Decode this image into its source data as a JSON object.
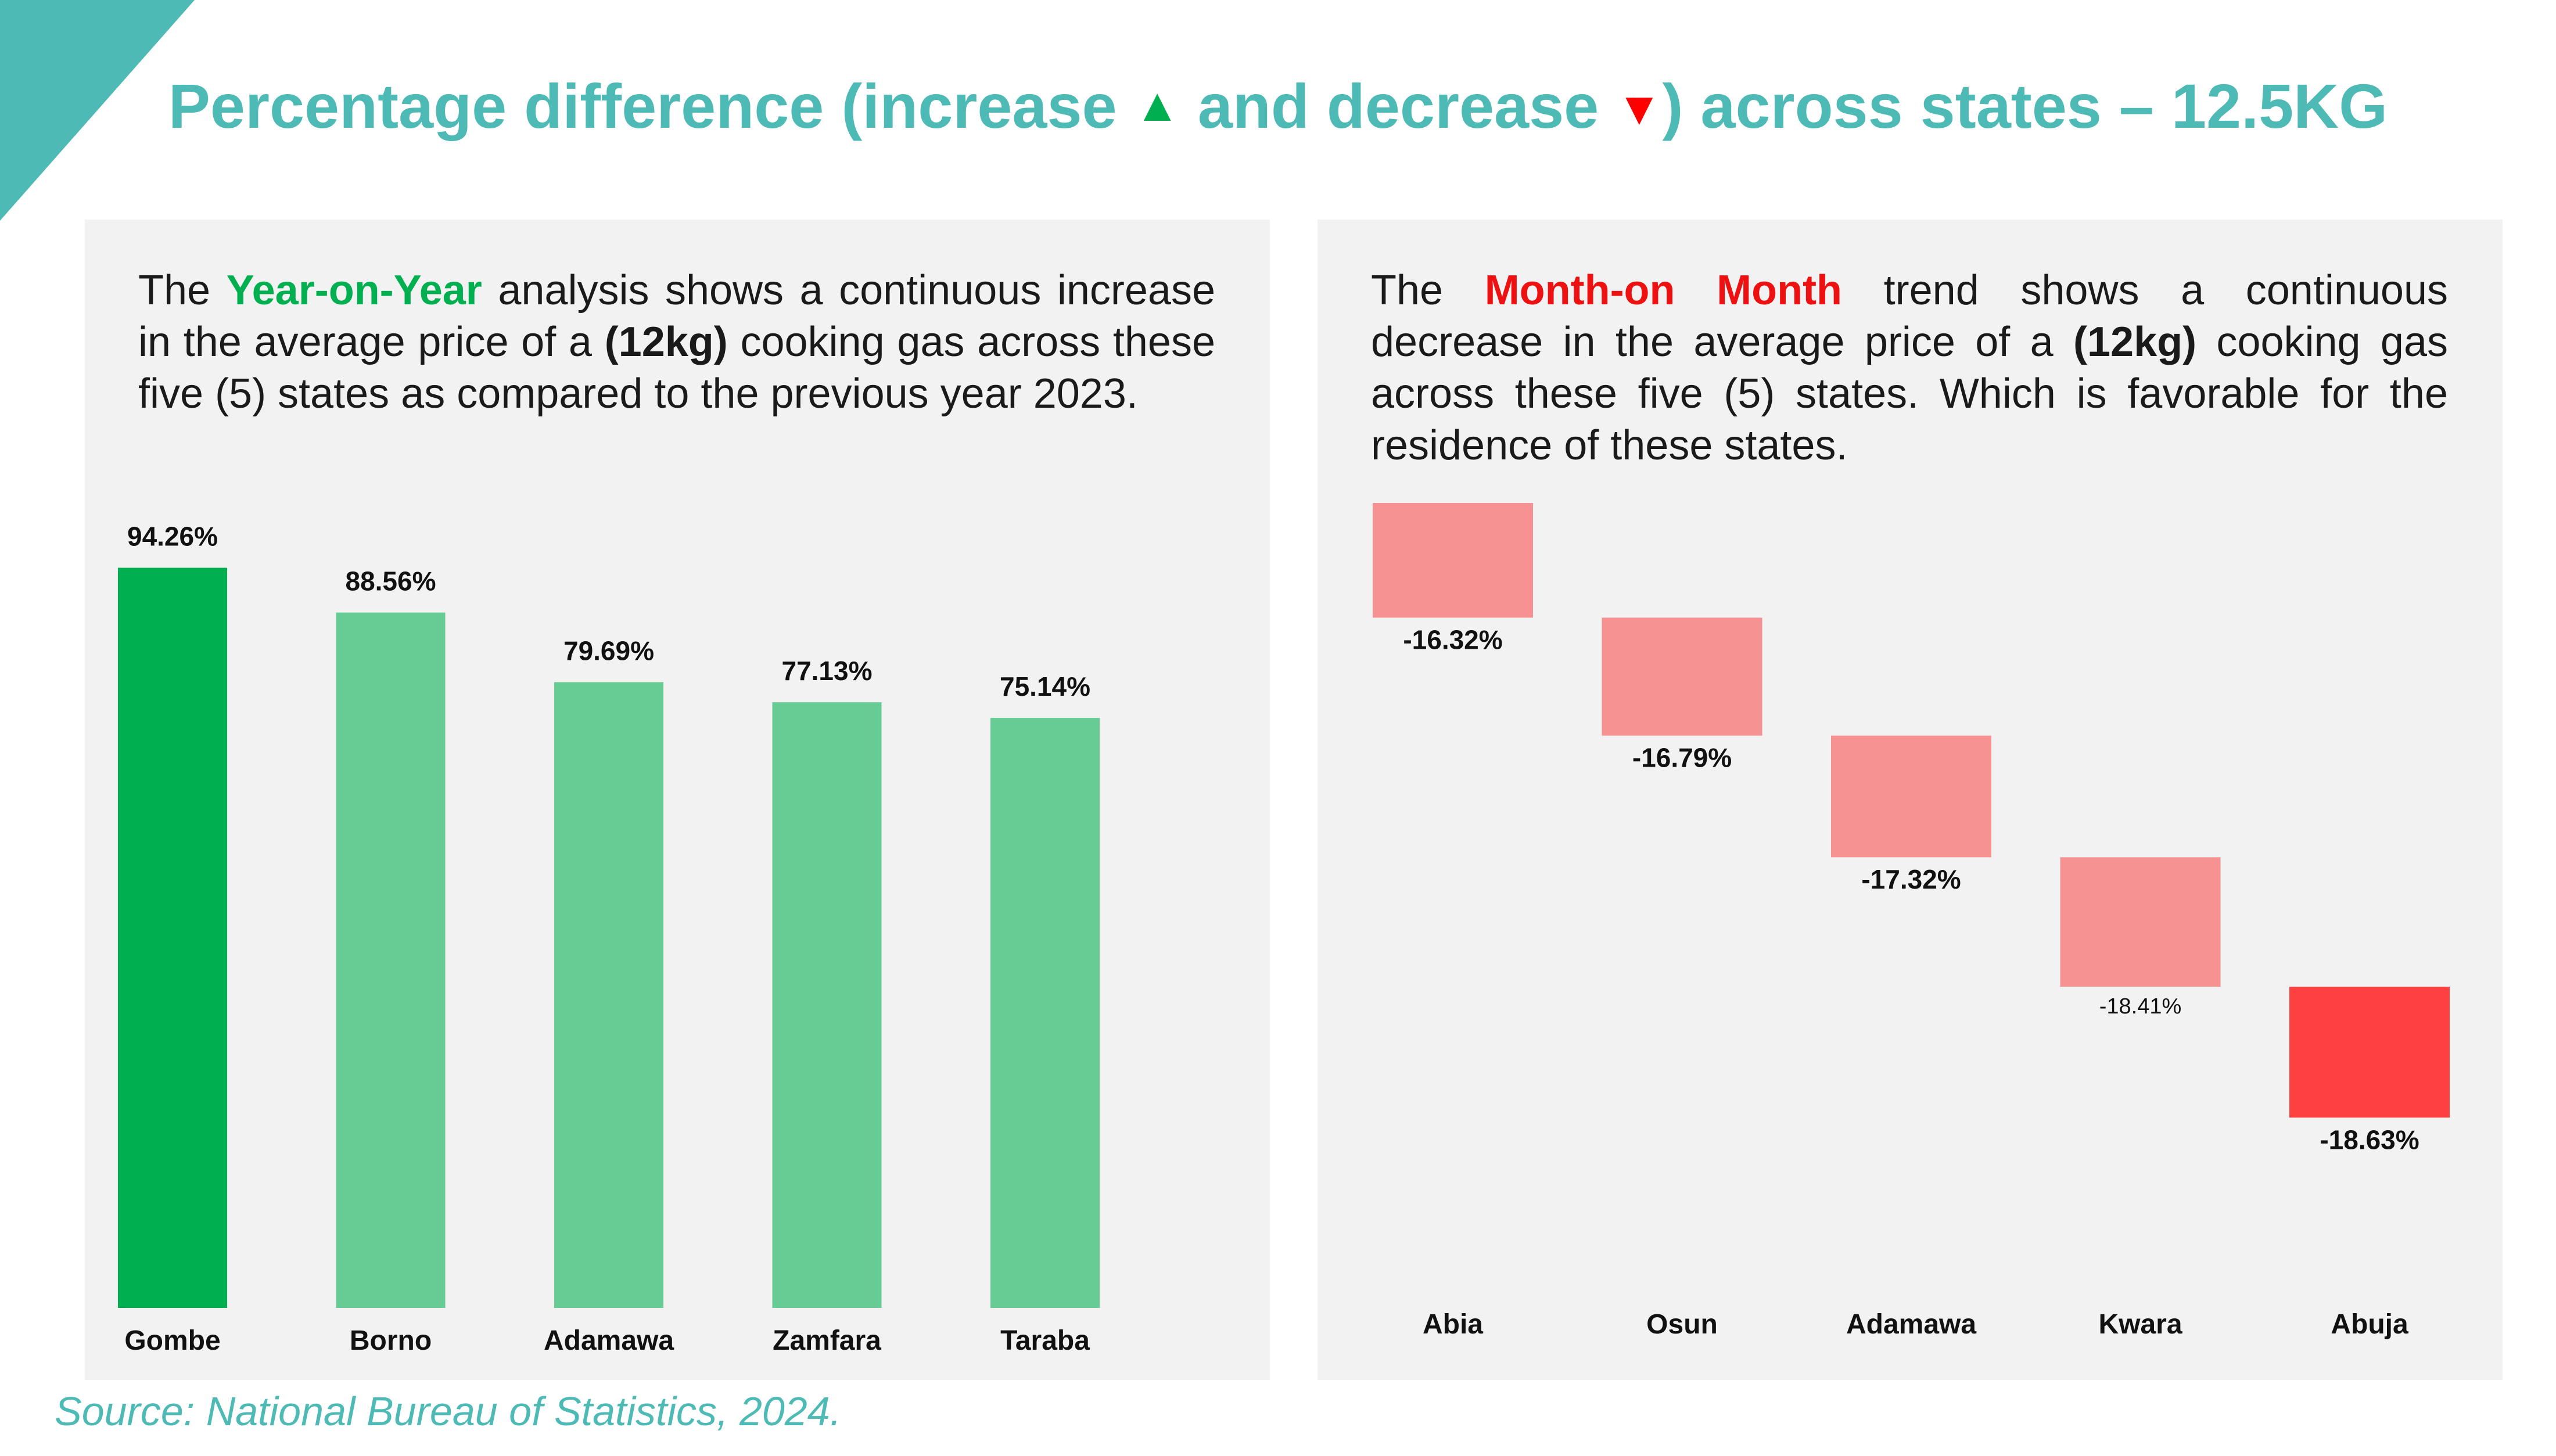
{
  "title": {
    "before": "Percentage difference (increase ",
    "up_symbol": "▲",
    "middle": " and decrease ",
    "down_symbol": "▼",
    "after": ")  across states – 12.5KG"
  },
  "colors": {
    "accent": "#4dbab5",
    "increase_highlight": "#00b050",
    "increase_bar": "#66cc94",
    "decrease_bar": "#f69292",
    "decrease_highlight": "#ff4040"
  },
  "yoy_panel": {
    "text_1": "The ",
    "highlight": "Year-on-Year",
    "text_2": "  analysis shows a continuous increase in the average price of a ",
    "bold_term": "(12kg)",
    "text_3": " cooking gas across these five (5) states as compared to the previous year 2023."
  },
  "mom_panel": {
    "text_1": "The ",
    "highlight": "Month-on Month",
    "text_2": " trend shows a continuous decrease in the average price of a ",
    "bold_term": "(12kg)",
    "text_3": " cooking gas across these five (5) states. Which is favorable for the residence of these states."
  },
  "source": "Source: National Bureau of Statistics, 2024.",
  "chart_data": [
    {
      "type": "bar",
      "categories": [
        "Gombe",
        "Borno",
        "Adamawa",
        "Zamfara",
        "Taraba"
      ],
      "values": [
        94.26,
        88.56,
        79.69,
        77.13,
        75.14
      ],
      "data_labels": [
        "94.26%",
        "88.56%",
        "79.69%",
        "77.13%",
        "75.14%"
      ],
      "highlight_index": 0,
      "ylim": [
        0,
        100
      ],
      "grid": false,
      "legend": "none"
    },
    {
      "type": "bar",
      "subtype": "waterfall",
      "categories": [
        "Abia",
        "Osun",
        "Adamawa",
        "Kwara",
        "Abuja"
      ],
      "values": [
        -16.32,
        -16.79,
        -17.32,
        -18.41,
        -18.63
      ],
      "data_labels": [
        "-16.32%",
        "-16.79%",
        "-17.32%",
        "-18.41%",
        "-18.63%"
      ],
      "highlight_index": 4,
      "grid": false,
      "legend": "none"
    }
  ]
}
